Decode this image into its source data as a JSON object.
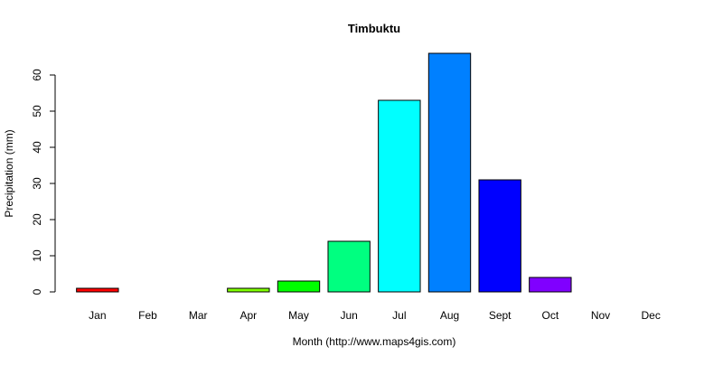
{
  "chart_data": {
    "type": "bar",
    "title": "Timbuktu",
    "xlabel": "Month (http://www.maps4gis.com)",
    "ylabel": "Precipitation (mm)",
    "categories": [
      "Jan",
      "Feb",
      "Mar",
      "Apr",
      "May",
      "Jun",
      "Jul",
      "Aug",
      "Sept",
      "Oct",
      "Nov",
      "Dec"
    ],
    "values": [
      1,
      0,
      0,
      1,
      3,
      14,
      53,
      66,
      31,
      4,
      0,
      0
    ],
    "colors": [
      "#ff0000",
      "#ff8000",
      "#ffff00",
      "#80ff00",
      "#00ff00",
      "#00ff80",
      "#00ffff",
      "#0080ff",
      "#0000ff",
      "#8000ff",
      "#ff00ff",
      "#ff0080"
    ],
    "yticks": [
      0,
      10,
      20,
      30,
      40,
      50,
      60
    ],
    "ylim": [
      0,
      66
    ],
    "grid": false,
    "legend": "none"
  }
}
